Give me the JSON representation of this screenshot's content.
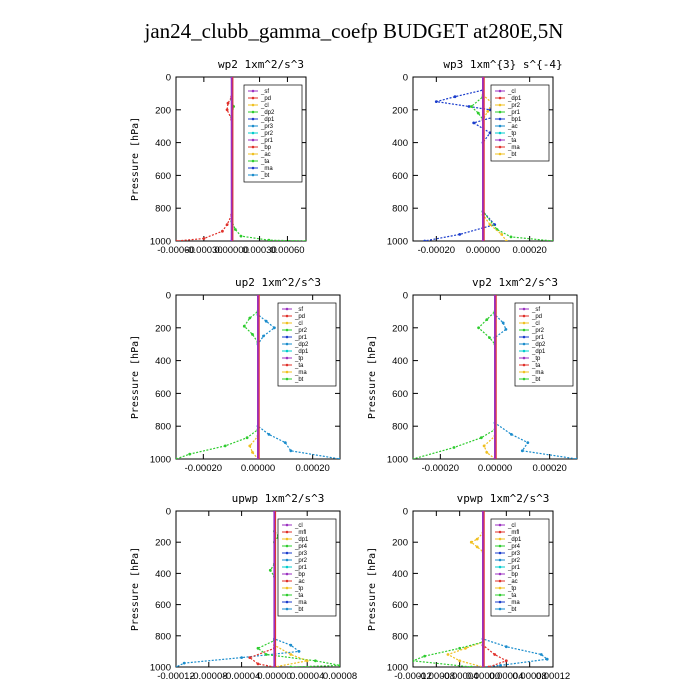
{
  "title": "jan24_clubb_gamma_coefp  BUDGET at280E,5N",
  "chart_data": [
    {
      "type": "line",
      "title": "wp2   1xm^2/s^3",
      "ylabel": "Pressure [hPa]",
      "ylim": [
        1000,
        0
      ],
      "yticks": [
        0,
        200,
        400,
        600,
        800,
        1000
      ],
      "xlim": [
        -0.0006,
        0.0008
      ],
      "xtick_values": [
        -0.0006,
        -0.0003,
        0.0,
        0.0003,
        0.0006
      ],
      "xtick_labels": [
        "-0.00060",
        "-0.00030",
        "0.00000",
        "0.00030",
        "0.00060"
      ],
      "legend": [
        "_sf",
        "_pd",
        "_cl",
        "_dp2",
        "_dp1",
        "_pr3",
        "_pr2",
        "_pr1",
        "_bp",
        "_ac",
        "_ta",
        "_ma",
        "_bt"
      ],
      "series": [
        {
          "color": "#9b30c0",
          "points": [
            [
              0,
              0
            ],
            [
              0,
              1000
            ]
          ]
        },
        {
          "color": "#e0302a",
          "points": [
            [
              0,
              0
            ],
            [
              0,
              120
            ],
            [
              -4e-05,
              160
            ],
            [
              -5e-05,
              200
            ],
            [
              0,
              260
            ],
            [
              0,
              840
            ],
            [
              -5e-05,
              900
            ],
            [
              -0.0001,
              940
            ],
            [
              -0.0003,
              985
            ],
            [
              -0.0006,
              1000
            ]
          ]
        },
        {
          "color": "#2ecc2e",
          "points": [
            [
              0,
              0
            ],
            [
              0,
              140
            ],
            [
              2e-05,
              180
            ],
            [
              0,
              240
            ],
            [
              0,
              880
            ],
            [
              4e-05,
              930
            ],
            [
              0.0001,
              970
            ],
            [
              0.0004,
              995
            ],
            [
              0.0008,
              1000
            ]
          ]
        },
        {
          "color": "#1a3ccc",
          "points": [
            [
              0,
              0
            ],
            [
              0,
              1000
            ]
          ]
        }
      ]
    },
    {
      "type": "line",
      "title": "wp3   1xm^{3} s^{-4}",
      "ylabel": "",
      "ylim": [
        1000,
        0
      ],
      "yticks": [
        0,
        200,
        400,
        600,
        800,
        1000
      ],
      "xlim": [
        -0.0003,
        0.0003
      ],
      "xtick_values": [
        -0.0002,
        0.0,
        0.0002
      ],
      "xtick_labels": [
        "-0.00020",
        "0.00000",
        "0.00020"
      ],
      "legend": [
        "_cl",
        "_dp1",
        "_pr2",
        "_pr1",
        "_bp1",
        "_ac",
        "_tp",
        "_ta",
        "_ma",
        "_bt"
      ],
      "series": [
        {
          "color": "#1a3ccc",
          "points": [
            [
              0,
              0
            ],
            [
              0,
              80
            ],
            [
              -0.00012,
              120
            ],
            [
              -0.0002,
              150
            ],
            [
              -6e-05,
              180
            ],
            [
              3e-05,
              200
            ],
            [
              8e-05,
              230
            ],
            [
              -4e-05,
              280
            ],
            [
              3e-05,
              340
            ],
            [
              0,
              400
            ],
            [
              0,
              820
            ],
            [
              5e-05,
              900
            ],
            [
              -0.0001,
              960
            ],
            [
              -0.00025,
              1000
            ]
          ]
        },
        {
          "color": "#2ecc2e",
          "points": [
            [
              0,
              0
            ],
            [
              0,
              120
            ],
            [
              -5e-05,
              180
            ],
            [
              -2e-05,
              220
            ],
            [
              0,
              260
            ],
            [
              0,
              820
            ],
            [
              6e-05,
              930
            ],
            [
              0.00012,
              975
            ],
            [
              0.0003,
              1000
            ]
          ]
        },
        {
          "color": "#f0c020",
          "points": [
            [
              0,
              0
            ],
            [
              0,
              110
            ],
            [
              4e-05,
              160
            ],
            [
              2e-05,
              210
            ],
            [
              0,
              260
            ],
            [
              0,
              840
            ],
            [
              3e-05,
              900
            ],
            [
              8e-05,
              960
            ],
            [
              0.0001,
              1000
            ]
          ]
        },
        {
          "color": "#e0302a",
          "points": [
            [
              0,
              0
            ],
            [
              0,
              1000
            ]
          ]
        },
        {
          "color": "#9b30c0",
          "points": [
            [
              0,
              0
            ],
            [
              0,
              1000
            ]
          ]
        }
      ]
    },
    {
      "type": "line",
      "title": "up2   1xm^2/s^3",
      "ylabel": "Pressure [hPa]",
      "ylim": [
        1000,
        0
      ],
      "yticks": [
        0,
        200,
        400,
        600,
        800,
        1000
      ],
      "xlim": [
        -0.0003,
        0.0003
      ],
      "xtick_values": [
        -0.0002,
        0.0,
        0.0002
      ],
      "xtick_labels": [
        "-0.00020",
        "0.00000",
        "0.00020"
      ],
      "legend": [
        "_sf",
        "_pd",
        "_cl",
        "_pr2",
        "_pr1",
        "_dp2",
        "_dp1",
        "_tp",
        "_ta",
        "_ma",
        "_bt"
      ],
      "series": [
        {
          "color": "#2ecc2e",
          "points": [
            [
              0,
              0
            ],
            [
              0,
              100
            ],
            [
              -3e-05,
              140
            ],
            [
              -5e-05,
              190
            ],
            [
              -2e-05,
              240
            ],
            [
              0,
              290
            ],
            [
              0,
              820
            ],
            [
              -4e-05,
              870
            ],
            [
              -0.00012,
              920
            ],
            [
              -0.00025,
              970
            ],
            [
              -0.0003,
              1000
            ]
          ]
        },
        {
          "color": "#1a8ccc",
          "points": [
            [
              0,
              0
            ],
            [
              0,
              120
            ],
            [
              3e-05,
              160
            ],
            [
              6e-05,
              200
            ],
            [
              2e-05,
              250
            ],
            [
              0,
              300
            ],
            [
              0,
              800
            ],
            [
              4e-05,
              850
            ],
            [
              0.0001,
              900
            ],
            [
              0.00012,
              950
            ],
            [
              0.0003,
              1000
            ]
          ]
        },
        {
          "color": "#f0c020",
          "points": [
            [
              0,
              0
            ],
            [
              0,
              860
            ],
            [
              -3e-05,
              920
            ],
            [
              -2e-05,
              960
            ],
            [
              0,
              1000
            ]
          ]
        },
        {
          "color": "#e0302a",
          "points": [
            [
              0,
              0
            ],
            [
              0,
              1000
            ]
          ]
        },
        {
          "color": "#9b30c0",
          "points": [
            [
              0,
              0
            ],
            [
              0,
              1000
            ]
          ]
        }
      ]
    },
    {
      "type": "line",
      "title": "vp2   1xm^2/s^3",
      "ylabel": "Pressure [hPa]",
      "ylim": [
        1000,
        0
      ],
      "yticks": [
        0,
        200,
        400,
        600,
        800,
        1000
      ],
      "xlim": [
        -0.0003,
        0.0003
      ],
      "xtick_values": [
        -0.0002,
        0.0,
        0.0002
      ],
      "xtick_labels": [
        "-0.00020",
        "0.00000",
        "0.00020"
      ],
      "legend": [
        "_sf",
        "_pd",
        "_cl",
        "_pr2",
        "_pr1",
        "_dp2",
        "_dp1",
        "_tp",
        "_ta",
        "_ma",
        "_bt"
      ],
      "series": [
        {
          "color": "#2ecc2e",
          "points": [
            [
              0,
              0
            ],
            [
              0,
              100
            ],
            [
              -3e-05,
              150
            ],
            [
              -6e-05,
              200
            ],
            [
              -2e-05,
              260
            ],
            [
              0,
              300
            ],
            [
              0,
              820
            ],
            [
              -5e-05,
              870
            ],
            [
              -0.00015,
              930
            ],
            [
              -0.0003,
              1000
            ]
          ]
        },
        {
          "color": "#1a8ccc",
          "points": [
            [
              0,
              0
            ],
            [
              0,
              120
            ],
            [
              3e-05,
              170
            ],
            [
              4e-05,
              210
            ],
            [
              0,
              260
            ],
            [
              0,
              780
            ],
            [
              6e-05,
              850
            ],
            [
              0.00012,
              900
            ],
            [
              0.0001,
              950
            ],
            [
              0.0003,
              1000
            ]
          ]
        },
        {
          "color": "#f0c020",
          "points": [
            [
              0,
              0
            ],
            [
              0,
              860
            ],
            [
              -4e-05,
              920
            ],
            [
              -3e-05,
              960
            ],
            [
              0,
              1000
            ]
          ]
        },
        {
          "color": "#e0302a",
          "points": [
            [
              0,
              0
            ],
            [
              0,
              1000
            ]
          ]
        },
        {
          "color": "#9b30c0",
          "points": [
            [
              0,
              0
            ],
            [
              0,
              1000
            ]
          ]
        }
      ]
    },
    {
      "type": "line",
      "title": "upwp   1xm^2/s^3",
      "ylabel": "Pressure [hPa]",
      "ylim": [
        1000,
        0
      ],
      "yticks": [
        0,
        200,
        400,
        600,
        800,
        1000
      ],
      "xlim": [
        -0.00012,
        8e-05
      ],
      "xtick_values": [
        -0.00012,
        -8e-05,
        -4e-05,
        0.0,
        4e-05,
        8e-05
      ],
      "xtick_labels": [
        "-0.00012",
        "-0.00008",
        "-0.00004",
        "0.00000",
        "0.00004",
        "0.00008"
      ],
      "legend": [
        "_cl",
        "_mfl",
        "_dp1",
        "_pr4",
        "_pr3",
        "_pr2",
        "_pr1",
        "_bp",
        "_ac",
        "_tp",
        "_ta",
        "_ma",
        "_bt"
      ],
      "series": [
        {
          "color": "#1a8ccc",
          "points": [
            [
              0,
              0
            ],
            [
              0,
              820
            ],
            [
              2e-05,
              860
            ],
            [
              3e-05,
              900
            ],
            [
              -4e-05,
              940
            ],
            [
              -0.00011,
              975
            ],
            [
              -0.00012,
              1000
            ]
          ]
        },
        {
          "color": "#2ecc2e",
          "points": [
            [
              0,
              0
            ],
            [
              0,
              130
            ],
            [
              5e-06,
              160
            ],
            [
              0,
              200
            ],
            [
              0,
              340
            ],
            [
              -5e-06,
              380
            ],
            [
              0,
              420
            ],
            [
              0,
              830
            ],
            [
              -2e-05,
              880
            ],
            [
              -1e-05,
              920
            ],
            [
              5e-05,
              960
            ],
            [
              8e-05,
              990
            ],
            [
              2e-05,
              1000
            ]
          ]
        },
        {
          "color": "#f0c020",
          "points": [
            [
              0,
              0
            ],
            [
              0,
              860
            ],
            [
              2e-05,
              920
            ],
            [
              4e-05,
              960
            ],
            [
              0,
              1000
            ]
          ]
        },
        {
          "color": "#e0302a",
          "points": [
            [
              0,
              0
            ],
            [
              0,
              880
            ],
            [
              -3e-05,
              940
            ],
            [
              -2e-05,
              980
            ],
            [
              0,
              1000
            ]
          ]
        },
        {
          "color": "#9b30c0",
          "points": [
            [
              0,
              0
            ],
            [
              0,
              1000
            ]
          ]
        }
      ]
    },
    {
      "type": "line",
      "title": "vpwp   1xm^2/s^3",
      "ylabel": "Pressure [hPa]",
      "ylim": [
        1000,
        0
      ],
      "yticks": [
        0,
        200,
        400,
        600,
        800,
        1000
      ],
      "xlim": [
        -0.00012,
        0.00012
      ],
      "xtick_values": [
        -0.00012,
        -8e-05,
        -4e-05,
        0.0,
        4e-05,
        8e-05,
        0.00012
      ],
      "xtick_labels": [
        "-0.00012",
        "-0.00008",
        "-0.00004",
        "0.00000",
        "0.00004",
        "0.00008",
        "0.00012"
      ],
      "legend": [
        "_cl",
        "_mfl",
        "_dp1",
        "_pr4",
        "_pr3",
        "_pr2",
        "_pr1",
        "_bp",
        "_ac",
        "_tp",
        "_ta",
        "_ma",
        "_bt"
      ],
      "series": [
        {
          "color": "#f0c020",
          "points": [
            [
              0,
              0
            ],
            [
              0,
              140
            ],
            [
              -1e-05,
              180
            ],
            [
              -2e-05,
              200
            ],
            [
              -1e-05,
              230
            ],
            [
              0,
              260
            ],
            [
              0,
              840
            ],
            [
              -3e-05,
              880
            ],
            [
              -6e-05,
              920
            ],
            [
              -4e-05,
              960
            ],
            [
              0,
              1000
            ]
          ]
        },
        {
          "color": "#2ecc2e",
          "points": [
            [
              0,
              0
            ],
            [
              0,
              840
            ],
            [
              -4e-05,
              880
            ],
            [
              -0.0001,
              930
            ],
            [
              -0.00012,
              960
            ],
            [
              -2e-05,
              1000
            ]
          ]
        },
        {
          "color": "#1a8ccc",
          "points": [
            [
              0,
              0
            ],
            [
              0,
              820
            ],
            [
              4e-05,
              870
            ],
            [
              0.0001,
              920
            ],
            [
              0.00011,
              950
            ],
            [
              3e-05,
              990
            ],
            [
              0,
              1000
            ]
          ]
        },
        {
          "color": "#e0302a",
          "points": [
            [
              0,
              0
            ],
            [
              0,
              860
            ],
            [
              2e-05,
              920
            ],
            [
              4e-05,
              960
            ],
            [
              1e-05,
              1000
            ]
          ]
        },
        {
          "color": "#9b30c0",
          "points": [
            [
              0,
              0
            ],
            [
              0,
              1000
            ]
          ]
        }
      ]
    }
  ]
}
